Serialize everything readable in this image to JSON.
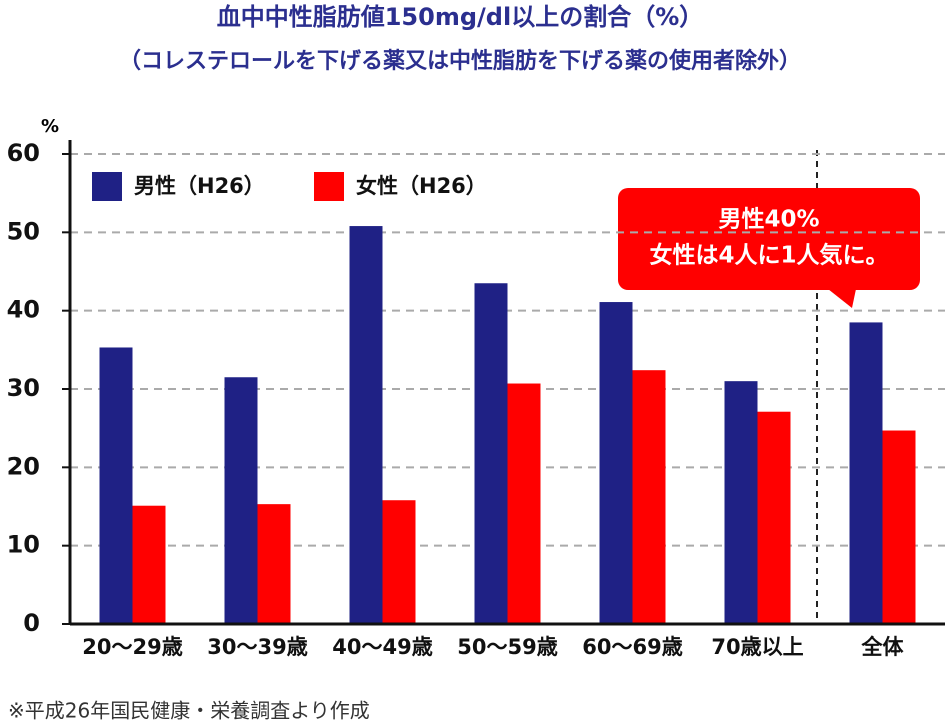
{
  "chart_data": {
    "type": "bar",
    "title": "血中中性脂肪値150mg/dl以上の割合（%）",
    "subtitle": "（コレステロールを下げる薬又は中性脂肪を下げる薬の使用者除外）",
    "y_unit": "%",
    "categories": [
      "20～29歳",
      "30～39歳",
      "40～49歳",
      "50～59歳",
      "60～69歳",
      "70歳以上",
      "全体"
    ],
    "series": [
      {
        "name": "男性（H26）",
        "color": "#1f2185",
        "values": [
          35.3,
          31.5,
          50.8,
          43.5,
          41.1,
          31.0,
          38.5
        ]
      },
      {
        "name": "女性（H26）",
        "color": "#ff0000",
        "values": [
          15.1,
          15.3,
          15.8,
          30.7,
          32.4,
          27.1,
          24.7
        ]
      }
    ],
    "ylim": [
      0,
      60
    ],
    "yticks": [
      0,
      10,
      20,
      30,
      40,
      50,
      60
    ],
    "grid": true,
    "annotation": [
      "男性40%",
      "女性は4人に1人気に。"
    ],
    "source": "※平成26年国民健康・栄養調査より作成"
  }
}
